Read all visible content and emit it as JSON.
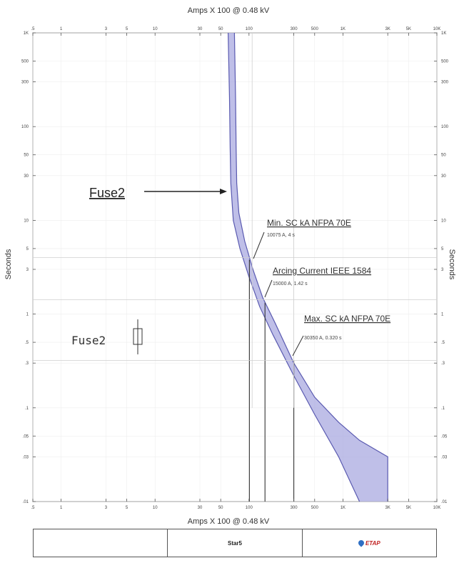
{
  "chart_data": {
    "type": "line",
    "title": "",
    "xlabel_top": "Amps X 100 @ 0.48 kV",
    "xlabel_bottom": "Amps X 100 @ 0.48 kV",
    "ylabel_left": "Seconds",
    "ylabel_right": "Seconds",
    "xscale": "log",
    "yscale": "log",
    "xlim": [
      0.5,
      10000
    ],
    "ylim": [
      0.01,
      1000
    ],
    "grid": true,
    "x_ticks": [
      ".5",
      "1",
      "3",
      "5",
      "10",
      "30",
      "50",
      "100",
      "300",
      "500",
      "1K",
      "3K",
      "5K",
      "10K"
    ],
    "x_tick_values": [
      0.5,
      1,
      3,
      5,
      10,
      30,
      50,
      100,
      300,
      500,
      1000,
      3000,
      5000,
      10000
    ],
    "y_ticks": [
      "1K",
      "500",
      "300",
      "100",
      "50",
      "30",
      "10",
      "5",
      "3",
      "1",
      ".5",
      ".3",
      ".1",
      ".05",
      ".03",
      ".01"
    ],
    "y_tick_values": [
      1000,
      500,
      300,
      100,
      50,
      30,
      10,
      5,
      3,
      1,
      0.5,
      0.3,
      0.1,
      0.05,
      0.03,
      0.01
    ],
    "series": [
      {
        "name": "Fuse2",
        "color": "#5a5ab0",
        "fill": "#a9a9e0",
        "min_melt": [
          [
            60,
            1000
          ],
          [
            62,
            200
          ],
          [
            63,
            60
          ],
          [
            64,
            25
          ],
          [
            68,
            10
          ],
          [
            80,
            5
          ],
          [
            100,
            2.5
          ],
          [
            130,
            1.2
          ],
          [
            180,
            0.6
          ],
          [
            300,
            0.22
          ],
          [
            500,
            0.085
          ],
          [
            900,
            0.03
          ],
          [
            1500,
            0.01
          ]
        ],
        "total_clear": [
          [
            70,
            1000
          ],
          [
            72,
            200
          ],
          [
            73,
            60
          ],
          [
            74,
            25
          ],
          [
            78,
            12
          ],
          [
            90,
            6
          ],
          [
            110,
            3
          ],
          [
            140,
            1.5
          ],
          [
            190,
            0.8
          ],
          [
            300,
            0.3
          ],
          [
            500,
            0.13
          ],
          [
            900,
            0.07
          ],
          [
            1500,
            0.045
          ],
          [
            3000,
            0.03
          ],
          [
            3000,
            0.01
          ]
        ]
      }
    ],
    "reference_lines": [
      {
        "axis": "x",
        "value": 101,
        "y_range": [
          0.01,
          3.8
        ]
      },
      {
        "axis": "x",
        "value": 148,
        "y_range": [
          0.01,
          1.32
        ]
      },
      {
        "axis": "x",
        "value": 300,
        "y_range": [
          0.01,
          0.32
        ]
      },
      {
        "axis": "x",
        "value": 108,
        "y_range": [
          0.1,
          1000
        ],
        "style": "grid"
      },
      {
        "axis": "x",
        "value": 300,
        "y_range": [
          0.1,
          1000
        ],
        "style": "grid"
      },
      {
        "axis": "y",
        "value": 4,
        "style": "grid"
      },
      {
        "axis": "y",
        "value": 1.42,
        "style": "grid"
      },
      {
        "axis": "y",
        "value": 0.32,
        "style": "grid"
      }
    ],
    "annotations": [
      {
        "id": "fuse-label",
        "text": "Fuse2",
        "arrow_to": [
          62,
          27
        ]
      },
      {
        "id": "min-sc",
        "title": "Min. SC kA NFPA 70E",
        "sub": "10075 A, 4 s",
        "point": [
          101,
          4
        ]
      },
      {
        "id": "arcing",
        "title": "Arcing Current IEEE 1584",
        "sub": "15000 A, 1.42 s",
        "point": [
          148,
          1.42
        ]
      },
      {
        "id": "max-sc",
        "title": "Max. SC kA NFPA 70E",
        "sub": "30350 A, 0.320 s",
        "point": [
          300,
          0.32
        ]
      }
    ],
    "legend": {
      "symbol_label": "Fuse2"
    }
  },
  "footer": {
    "middle": "Star5",
    "logo": "ETAP"
  }
}
